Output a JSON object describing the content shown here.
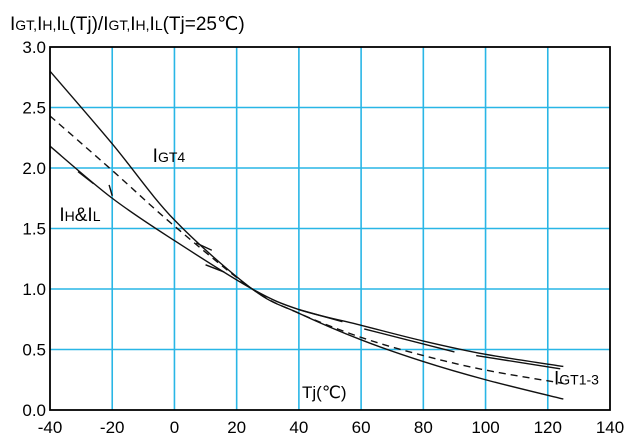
{
  "chart_data": {
    "type": "line",
    "title": "",
    "ylabel": "IGT,IH,IL(Tj)/IGT,IH,IL(Tj=25℃)",
    "ylabel_parts": [
      {
        "t": "I",
        "big": true
      },
      {
        "t": "GT,",
        "big": false
      },
      {
        "t": "I",
        "big": true
      },
      {
        "t": "H,",
        "big": false
      },
      {
        "t": "I",
        "big": true
      },
      {
        "t": "L",
        "big": false
      },
      {
        "t": "(Tj)/",
        "big": true
      },
      {
        "t": "I",
        "big": true
      },
      {
        "t": "GT,",
        "big": false
      },
      {
        "t": "I",
        "big": true
      },
      {
        "t": "H,",
        "big": false
      },
      {
        "t": "I",
        "big": true
      },
      {
        "t": "L",
        "big": false
      },
      {
        "t": "(Tj=25℃)",
        "big": true
      }
    ],
    "xlabel": "Tj(℃)",
    "xlim": [
      -40,
      140
    ],
    "ylim": [
      0,
      3.0
    ],
    "xticks": [
      "-40",
      "-20",
      "0",
      "20",
      "40",
      "60",
      "80",
      "100",
      "120",
      "140"
    ],
    "yticks": [
      "0.0",
      "0.5",
      "1.0",
      "1.5",
      "2.0",
      "2.5",
      "3.0"
    ],
    "grid": true,
    "grid_color": "#29b6e6",
    "series": [
      {
        "name": "IGT4",
        "style": "solid",
        "x": [
          -40,
          -20,
          0,
          25,
          40,
          60,
          80,
          100,
          125
        ],
        "y": [
          2.8,
          2.2,
          1.57,
          1.0,
          0.8,
          0.58,
          0.4,
          0.25,
          0.09
        ]
      },
      {
        "name": "IH&IL",
        "style": "dashed",
        "x": [
          -40,
          -20,
          0,
          25,
          40,
          60,
          80,
          100,
          125
        ],
        "y": [
          2.43,
          1.98,
          1.52,
          1.0,
          0.8,
          0.6,
          0.45,
          0.33,
          0.22
        ]
      },
      {
        "name": "IGT1-3",
        "style": "solid",
        "x": [
          -40,
          -20,
          0,
          25,
          40,
          60,
          80,
          100,
          125
        ],
        "y": [
          2.18,
          1.75,
          1.4,
          1.0,
          0.83,
          0.7,
          0.57,
          0.46,
          0.36
        ]
      }
    ],
    "label_segments": [
      {
        "x1": -31,
        "y1": 1.97,
        "x2": -26,
        "y2": 1.87
      },
      {
        "x1": -21,
        "y1": 1.86,
        "x2": -20,
        "y2": 1.77
      },
      {
        "x1": 7,
        "y1": 1.38,
        "x2": 12,
        "y2": 1.32
      },
      {
        "x1": 10,
        "y1": 1.2,
        "x2": 16,
        "y2": 1.14
      },
      {
        "x1": 40,
        "y1": 0.83,
        "x2": 54,
        "y2": 0.73
      },
      {
        "x1": 61,
        "y1": 0.67,
        "x2": 90,
        "y2": 0.48
      },
      {
        "x1": 97,
        "y1": 0.45,
        "x2": 124,
        "y2": 0.34
      }
    ],
    "annotations": [
      {
        "parts": [
          {
            "t": "I",
            "big": true
          },
          {
            "t": "GT4",
            "big": false
          }
        ],
        "x": -7,
        "y": 2.05
      },
      {
        "parts": [
          {
            "t": "I",
            "big": true
          },
          {
            "t": "H",
            "big": false
          },
          {
            "t": "&",
            "big": true
          },
          {
            "t": "I",
            "big": true
          },
          {
            "t": "L",
            "big": false
          }
        ],
        "x": -37,
        "y": 1.56
      },
      {
        "parts": [
          {
            "t": "I",
            "big": true
          },
          {
            "t": "GT1-3",
            "big": false
          }
        ],
        "x": 122,
        "y": 0.21
      }
    ]
  }
}
